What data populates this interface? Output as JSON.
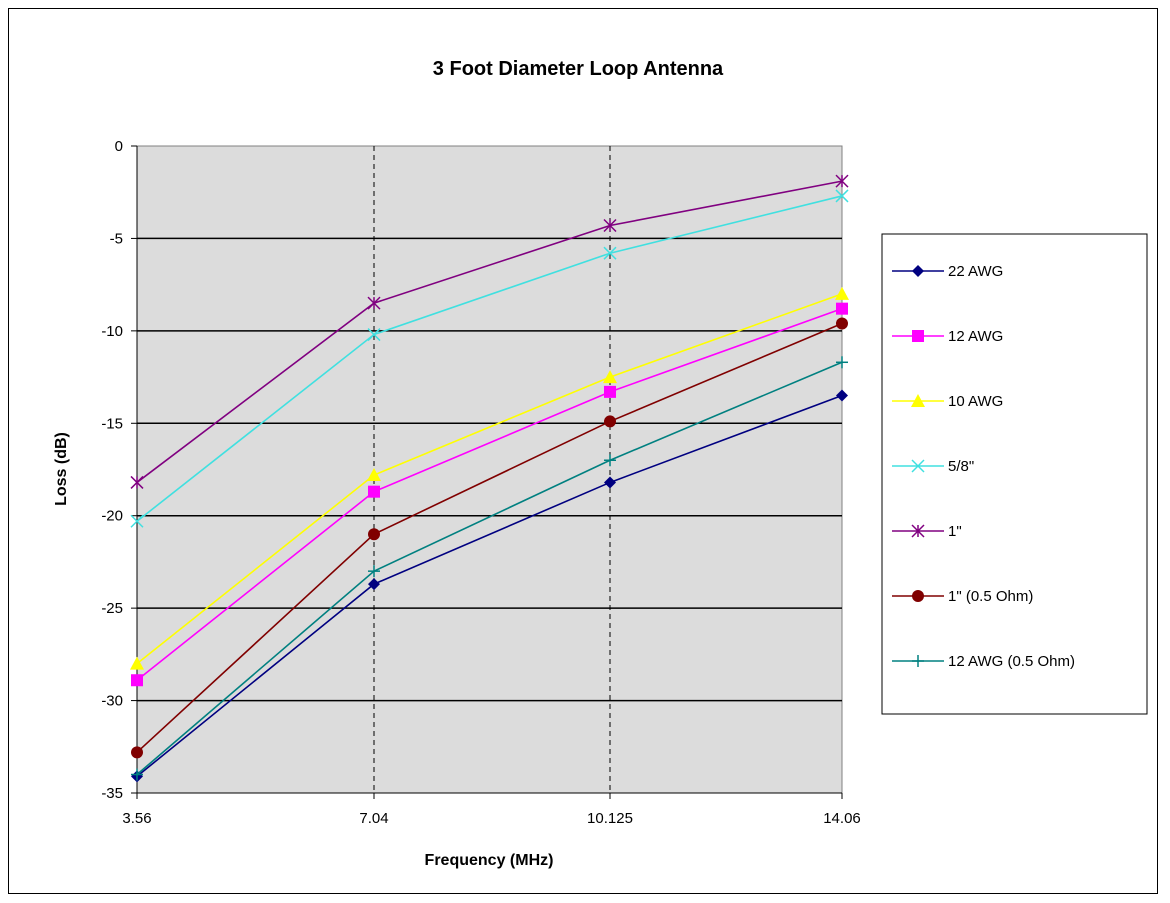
{
  "chart_data": {
    "type": "line",
    "title": "3 Foot Diameter Loop Antenna",
    "xlabel": "Frequency (MHz)",
    "ylabel": "Loss (dB)",
    "categories": [
      "3.56",
      "7.04",
      "10.125",
      "14.06"
    ],
    "ylim": [
      -35,
      0
    ],
    "yticks": [
      0,
      -5,
      -10,
      -15,
      -20,
      -25,
      -30,
      -35
    ],
    "grid": "horizontal major gridlines solid; vertical dashed at category values",
    "background": "#dcdcdc",
    "legend_position": "right",
    "series": [
      {
        "name": "22 AWG",
        "color": "#000080",
        "marker": "diamond",
        "values": [
          -34.1,
          -23.7,
          -18.2,
          -13.5
        ]
      },
      {
        "name": "12 AWG",
        "color": "#ff00ff",
        "marker": "square",
        "values": [
          -28.9,
          -18.7,
          -13.3,
          -8.8
        ]
      },
      {
        "name": "10 AWG",
        "color": "#ffff00",
        "marker": "triangle",
        "values": [
          -28.0,
          -17.8,
          -12.5,
          -8.0
        ]
      },
      {
        "name": "5/8\"",
        "color": "#40e0e0",
        "marker": "x",
        "values": [
          -20.3,
          -10.2,
          -5.8,
          -2.7
        ]
      },
      {
        "name": "1\"",
        "color": "#800080",
        "marker": "star",
        "values": [
          -18.2,
          -8.5,
          -4.3,
          -1.9
        ]
      },
      {
        "name": "1\" (0.5 Ohm)",
        "color": "#800000",
        "marker": "circle",
        "values": [
          -32.8,
          -21.0,
          -14.9,
          -9.6
        ]
      },
      {
        "name": "12 AWG (0.5 Ohm)",
        "color": "#008080",
        "marker": "plus",
        "values": [
          -34.0,
          -23.0,
          -17.0,
          -11.7
        ]
      }
    ]
  }
}
